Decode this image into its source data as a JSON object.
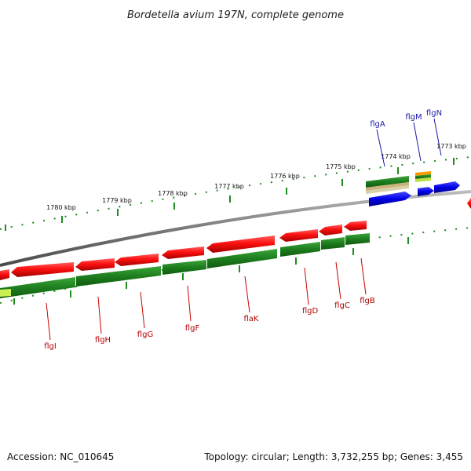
{
  "header": {
    "title": "Bordetella avium 197N, complete genome"
  },
  "footer": {
    "accession": "Accession: NC_010645",
    "summary": "Topology: circular; Length: 3,732,255 bp; Genes: 3,455"
  },
  "ticks": [
    "1780 kbp",
    "1779 kbp",
    "1778 kbp",
    "1777 kbp",
    "1776 kbp",
    "1775 kbp",
    "1774 kbp",
    "1773 kbp"
  ],
  "genes_top": [
    "flgA",
    "flgM",
    "flgN"
  ],
  "genes_bottom": [
    "flgI",
    "flgH",
    "flgG",
    "flgF",
    "flaK",
    "flgD",
    "flgC",
    "flgB"
  ],
  "colors": {
    "reverse_gene": "#e60000",
    "cds": "#1e8c1e",
    "forward_gene": "#0000e6",
    "backbone": "#808080",
    "label_top": "#1a1aa6",
    "label_bottom": "#b30000"
  }
}
